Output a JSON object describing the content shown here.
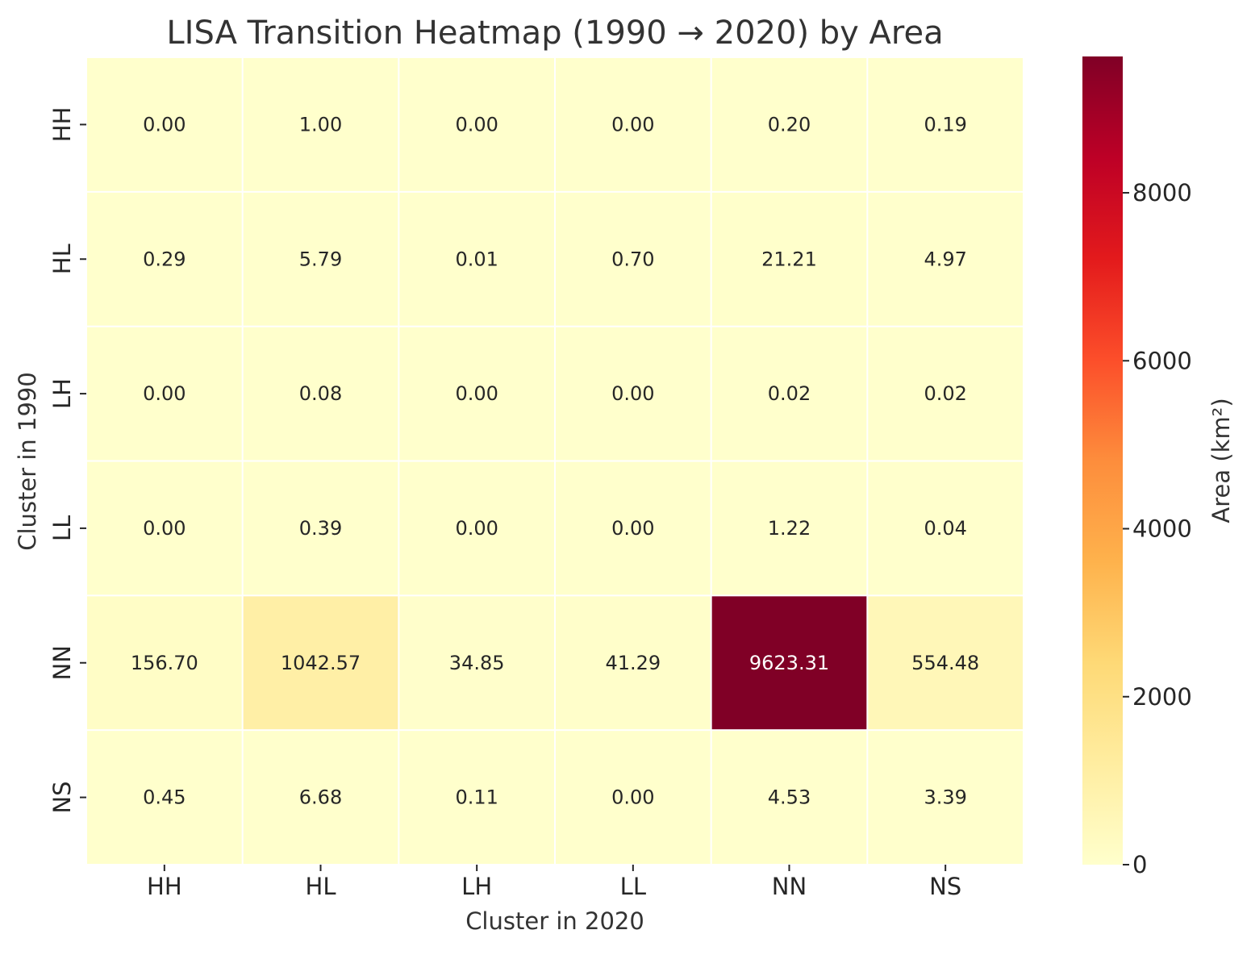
{
  "chart_data": {
    "type": "heatmap",
    "title": "LISA Transition Heatmap (1990 → 2020) by Area",
    "xlabel": "Cluster in 2020",
    "ylabel": "Cluster in 1990",
    "x_categories": [
      "HH",
      "HL",
      "LH",
      "LL",
      "NN",
      "NS"
    ],
    "y_categories": [
      "HH",
      "HL",
      "LH",
      "LL",
      "NN",
      "NS"
    ],
    "values": [
      [
        0.0,
        1.0,
        0.0,
        0.0,
        0.2,
        0.19
      ],
      [
        0.29,
        5.79,
        0.01,
        0.7,
        21.21,
        4.97
      ],
      [
        0.0,
        0.08,
        0.0,
        0.0,
        0.02,
        0.02
      ],
      [
        0.0,
        0.39,
        0.0,
        0.0,
        1.22,
        0.04
      ],
      [
        156.7,
        1042.57,
        34.85,
        41.29,
        9623.31,
        554.48
      ],
      [
        0.45,
        6.68,
        0.11,
        0.0,
        4.53,
        3.39
      ]
    ],
    "value_format": "0.00",
    "colorbar": {
      "label": "Area (km²)",
      "ticks": [
        0,
        2000,
        4000,
        6000,
        8000
      ],
      "range": [
        0,
        9623.31
      ],
      "colormap": "YlOrRd"
    },
    "colormap_stops": [
      "#ffffcc",
      "#ffeda0",
      "#fed976",
      "#feb24c",
      "#fd8d3c",
      "#fc4e2a",
      "#e31a1c",
      "#bd0026",
      "#800026"
    ],
    "grid": false,
    "legend": "colorbar-right"
  }
}
